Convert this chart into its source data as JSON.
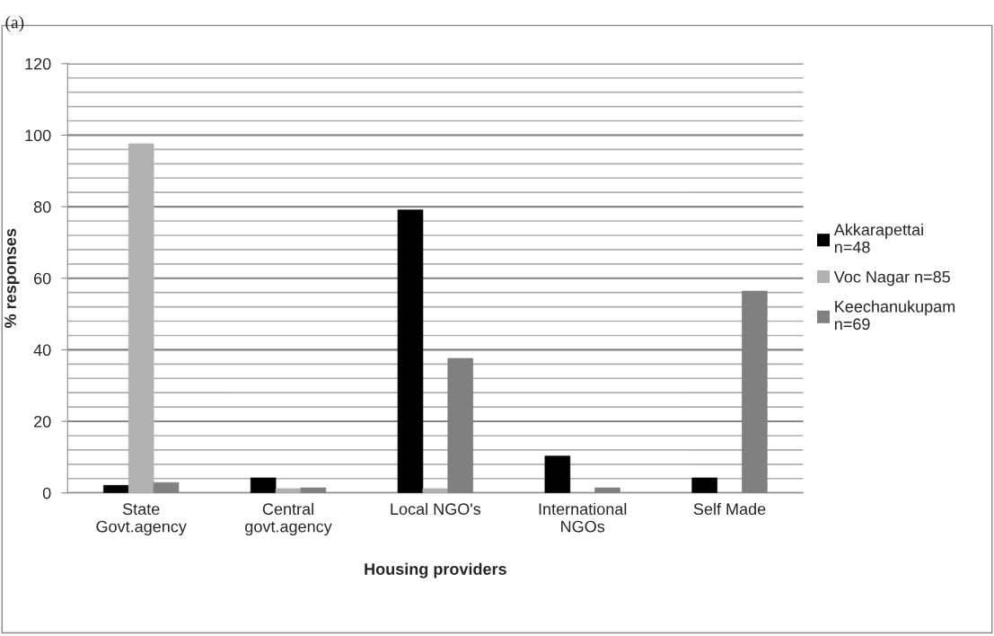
{
  "chart_data": {
    "type": "bar",
    "title": "(a)",
    "xlabel": "Housing providers",
    "ylabel": "% responses",
    "categories": [
      "State\nGovt.agency",
      "Central\ngovt.agency",
      "Local NGO's",
      "International\nNGOs",
      "Self Made"
    ],
    "series": [
      {
        "name": "Akkarapettai\nn=48",
        "color": "#000000",
        "values": [
          2.1,
          4.2,
          79.1,
          10.3,
          4.2
        ]
      },
      {
        "name": "Voc Nagar n=85",
        "color": "#b2b2b2",
        "values": [
          97.6,
          1.2,
          1.2,
          null,
          null
        ]
      },
      {
        "name": "Keechanukupam\nn=69",
        "color": "#808080",
        "values": [
          2.9,
          1.4,
          37.6,
          1.4,
          56.4
        ]
      }
    ],
    "ylim": [
      0,
      120
    ],
    "yticks": [
      0,
      20,
      40,
      60,
      80,
      100,
      120
    ],
    "grid": "y",
    "legend": "right"
  }
}
